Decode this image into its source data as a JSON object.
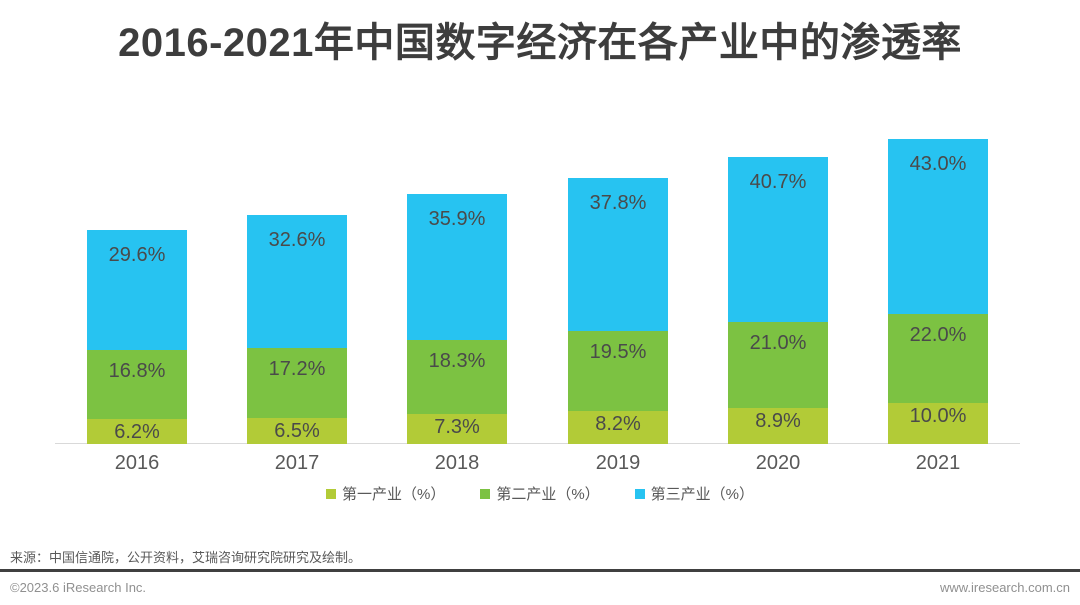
{
  "title": "2016-2021年中国数字经济在各产业中的渗透率",
  "chart_data": {
    "type": "bar",
    "stacked": true,
    "title": "2016-2021年中国数字经济在各产业中的渗透率",
    "categories": [
      "2016",
      "2017",
      "2018",
      "2019",
      "2020",
      "2021"
    ],
    "series": [
      {
        "name": "第一产业（%）",
        "color": "#b2cb37",
        "values": [
          6.2,
          6.5,
          7.3,
          8.2,
          8.9,
          10.0
        ]
      },
      {
        "name": "第二产业（%）",
        "color": "#7cc242",
        "values": [
          16.8,
          17.2,
          18.3,
          19.5,
          21.0,
          22.0
        ]
      },
      {
        "name": "第三产业（%）",
        "color": "#27c3f1",
        "values": [
          29.6,
          32.6,
          35.9,
          37.8,
          40.7,
          43.0
        ]
      }
    ],
    "value_label_suffix": "%",
    "value_label_decimals": 1,
    "ylim": [
      0,
      75
    ],
    "grid": false,
    "legend_position": "bottom"
  },
  "source_note": "来源：中国信通院，公开资料，艾瑞咨询研究院研究及绘制。",
  "footer": {
    "copyright": "©2023.6 iResearch Inc.",
    "website": "www.iresearch.com.cn"
  },
  "colors": {
    "primary_industry": "#b2cb37",
    "secondary_industry": "#7cc242",
    "tertiary_industry": "#27c3f1",
    "axis_line": "#d9d9d9",
    "divider": "#404040"
  }
}
